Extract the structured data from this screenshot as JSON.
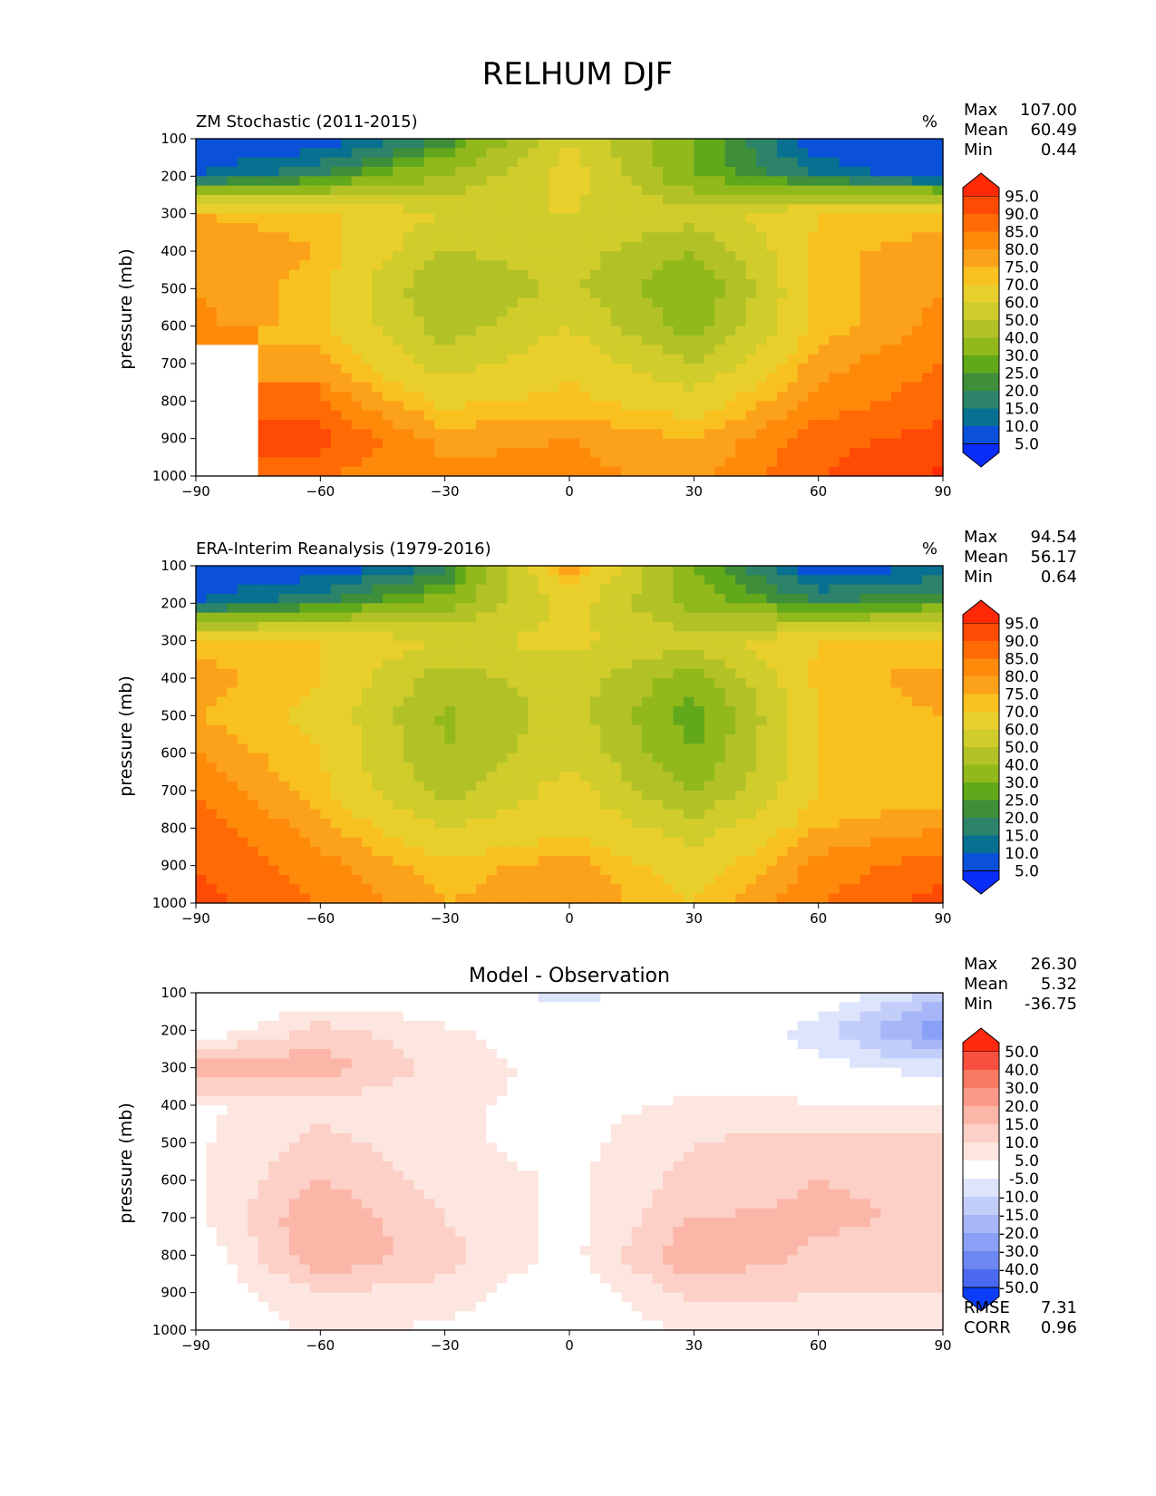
{
  "figure": {
    "title": "RELHUM DJF"
  },
  "chart_data": [
    {
      "type": "heatmap",
      "title": "ZM Stochastic (2011-2015)",
      "units": "%",
      "ylabel": "pressure (mb)",
      "xlabel": "",
      "xlim": [
        -90,
        90
      ],
      "ylim": [
        1000,
        100
      ],
      "xticks": [
        "−90",
        "−60",
        "−30",
        "0",
        "30",
        "60",
        "90"
      ],
      "yticks": [
        "100",
        "200",
        "300",
        "400",
        "500",
        "600",
        "700",
        "800",
        "900",
        "1000"
      ],
      "stats": [
        {
          "label": "Max",
          "value": "107.00"
        },
        {
          "label": "Mean",
          "value": "60.49"
        },
        {
          "label": "Min",
          "value": "0.44"
        }
      ],
      "colorbar": {
        "levels": [
          "95.0",
          "90.0",
          "85.0",
          "80.0",
          "75.0",
          "70.0",
          "60.0",
          "50.0",
          "40.0",
          "30.0",
          "25.0",
          "20.0",
          "15.0",
          "10.0",
          "5.0"
        ],
        "colors": [
          "#ff2a05",
          "#ff4a05",
          "#ff6a05",
          "#ff8a0a",
          "#fca21a",
          "#f9c120",
          "#e9cf2c",
          "#cfcc2b",
          "#b2c226",
          "#92b91c",
          "#62a81b",
          "#3e8e3a",
          "#2d8369",
          "#087090",
          "#0a50d8",
          "#0a2cf8"
        ]
      },
      "x": [
        -90,
        -60,
        -30,
        0,
        30,
        60,
        90
      ],
      "y": [
        100,
        200,
        300,
        400,
        500,
        600,
        700,
        800,
        900,
        1000
      ],
      "z": [
        [
          5,
          5,
          20,
          60,
          30,
          5,
          5
        ],
        [
          10,
          20,
          40,
          65,
          30,
          15,
          5
        ],
        [
          75,
          72,
          60,
          60,
          55,
          70,
          70
        ],
        [
          80,
          75,
          50,
          55,
          40,
          72,
          80
        ],
        [
          80,
          72,
          40,
          52,
          30,
          72,
          80
        ],
        [
          82,
          72,
          45,
          60,
          35,
          72,
          82
        ],
        [
          null,
          78,
          55,
          68,
          50,
          78,
          85
        ],
        [
          null,
          85,
          68,
          72,
          65,
          82,
          88
        ],
        [
          null,
          92,
          78,
          80,
          75,
          88,
          92
        ],
        [
          null,
          85,
          82,
          82,
          78,
          90,
          96
        ]
      ]
    },
    {
      "type": "heatmap",
      "title": "ERA-Interim Reanalysis (1979-2016)",
      "units": "%",
      "ylabel": "pressure (mb)",
      "xlabel": "",
      "xlim": [
        -90,
        90
      ],
      "ylim": [
        1000,
        100
      ],
      "xticks": [
        "−90",
        "−60",
        "−30",
        "0",
        "30",
        "60",
        "90"
      ],
      "yticks": [
        "100",
        "200",
        "300",
        "400",
        "500",
        "600",
        "700",
        "800",
        "900",
        "1000"
      ],
      "stats": [
        {
          "label": "Max",
          "value": "94.54"
        },
        {
          "label": "Mean",
          "value": "56.17"
        },
        {
          "label": "Min",
          "value": "0.64"
        }
      ],
      "colorbar": {
        "levels": [
          "95.0",
          "90.0",
          "85.0",
          "80.0",
          "75.0",
          "70.0",
          "60.0",
          "50.0",
          "40.0",
          "30.0",
          "25.0",
          "20.0",
          "15.0",
          "10.0",
          "5.0"
        ],
        "colors": [
          "#ff2a05",
          "#ff4a05",
          "#ff6a05",
          "#ff8a0a",
          "#fca21a",
          "#f9c120",
          "#e9cf2c",
          "#cfcc2b",
          "#b2c226",
          "#92b91c",
          "#62a81b",
          "#3e8e3a",
          "#2d8369",
          "#087090",
          "#0a50d8",
          "#0a2cf8"
        ]
      },
      "x": [
        -90,
        -60,
        -30,
        0,
        30,
        60,
        90
      ],
      "y": [
        100,
        200,
        300,
        400,
        500,
        600,
        700,
        800,
        900,
        1000
      ],
      "z": [
        [
          5,
          5,
          15,
          80,
          30,
          5,
          10
        ],
        [
          10,
          20,
          35,
          65,
          35,
          20,
          25
        ],
        [
          72,
          70,
          60,
          62,
          55,
          70,
          70
        ],
        [
          78,
          70,
          45,
          55,
          35,
          72,
          78
        ],
        [
          75,
          68,
          38,
          55,
          25,
          70,
          75
        ],
        [
          80,
          70,
          40,
          58,
          30,
          70,
          72
        ],
        [
          85,
          72,
          45,
          65,
          38,
          70,
          72
        ],
        [
          88,
          78,
          60,
          68,
          55,
          75,
          80
        ],
        [
          90,
          82,
          72,
          78,
          65,
          82,
          88
        ],
        [
          92,
          85,
          75,
          80,
          70,
          85,
          92
        ]
      ]
    },
    {
      "type": "heatmap",
      "title": "Model - Observation",
      "units": "",
      "ylabel": "pressure (mb)",
      "xlabel": "",
      "xlim": [
        -90,
        90
      ],
      "ylim": [
        1000,
        100
      ],
      "xticks": [
        "−90",
        "−60",
        "−30",
        "0",
        "30",
        "60",
        "90"
      ],
      "yticks": [
        "100",
        "200",
        "300",
        "400",
        "500",
        "600",
        "700",
        "800",
        "900",
        "1000"
      ],
      "stats": [
        {
          "label": "Max",
          "value": "26.30"
        },
        {
          "label": "Mean",
          "value": "5.32"
        },
        {
          "label": "Min",
          "value": "-36.75"
        }
      ],
      "bottom_stats": [
        {
          "label": "RMSE",
          "value": "7.31"
        },
        {
          "label": "CORR",
          "value": "0.96"
        }
      ],
      "colorbar": {
        "levels": [
          "50.0",
          "40.0",
          "30.0",
          "20.0",
          "15.0",
          "10.0",
          "5.0",
          "-5.0",
          "-10.0",
          "-15.0",
          "-20.0",
          "-30.0",
          "-40.0",
          "-50.0"
        ],
        "colors": [
          "#ff2a10",
          "#f8503e",
          "#f97a62",
          "#fb9a88",
          "#fbb6a8",
          "#fcd0c6",
          "#fde6e0",
          "#ffffff",
          "#dde4fc",
          "#c2cdfa",
          "#a6b6f8",
          "#8aa0f6",
          "#6c86f2",
          "#4a68f0",
          "#0a3ef8"
        ]
      },
      "x": [
        -90,
        -60,
        -30,
        0,
        30,
        60,
        90
      ],
      "y": [
        100,
        200,
        300,
        400,
        500,
        600,
        700,
        800,
        900,
        1000
      ],
      "z": [
        [
          0,
          0,
          0,
          -8,
          0,
          0,
          -12
        ],
        [
          0,
          12,
          6,
          0,
          3,
          -8,
          -25
        ],
        [
          20,
          18,
          8,
          3,
          2,
          -3,
          -8
        ],
        [
          4,
          8,
          6,
          3,
          6,
          6,
          4
        ],
        [
          4,
          12,
          6,
          3,
          10,
          12,
          12
        ],
        [
          4,
          15,
          8,
          4,
          12,
          15,
          14
        ],
        [
          4,
          20,
          10,
          3,
          15,
          16,
          14
        ],
        [
          0,
          20,
          12,
          3,
          20,
          14,
          12
        ],
        [
          0,
          10,
          8,
          0,
          12,
          10,
          10
        ],
        [
          0,
          6,
          4,
          0,
          6,
          8,
          10
        ]
      ]
    }
  ]
}
